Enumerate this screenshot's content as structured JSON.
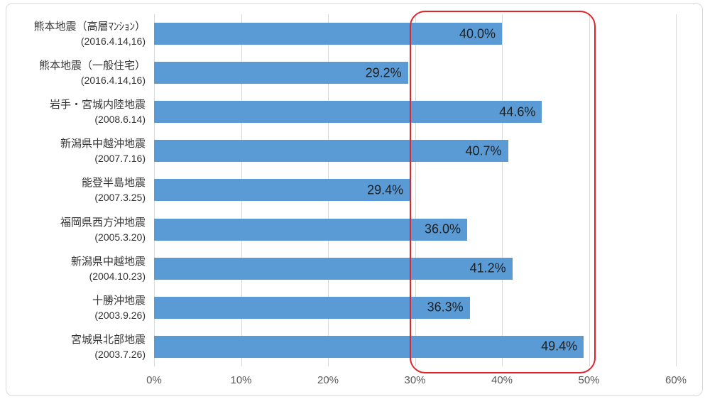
{
  "colors": {
    "bar": "#5b9bd5",
    "gridline": "#d9d9d9",
    "frame_border": "#d9d9d9",
    "tick_label": "#595959",
    "category_label": "#333333",
    "data_label": "#1f1f1f",
    "highlight_box": "#e0242b",
    "background": "#ffffff"
  },
  "chart_data": {
    "type": "bar",
    "orientation": "horizontal",
    "title": "",
    "xlabel": "",
    "ylabel": "",
    "xlim": [
      0,
      60
    ],
    "grid": true,
    "legend": false,
    "categories": [
      {
        "name": "熊本地震（高層ﾏﾝｼｮﾝ）",
        "date": "(2016.4.14,16)"
      },
      {
        "name": "熊本地震（一般住宅）",
        "date": "(2016.4.14,16)"
      },
      {
        "name": "岩手・宮城内陸地震",
        "date": "(2008.6.14)"
      },
      {
        "name": "新潟県中越沖地震",
        "date": "(2007.7.16)"
      },
      {
        "name": "能登半島地震",
        "date": "(2007.3.25)"
      },
      {
        "name": "福岡県西方沖地震",
        "date": "(2005.3.20)"
      },
      {
        "name": "新潟県中越地震",
        "date": "(2004.10.23)"
      },
      {
        "name": "十勝沖地震",
        "date": "(2003.9.26)"
      },
      {
        "name": "宮城県北部地震",
        "date": "(2003.7.26)"
      }
    ],
    "values": [
      40.0,
      29.2,
      44.6,
      40.7,
      29.4,
      36.0,
      41.2,
      36.3,
      49.4
    ],
    "data_labels": [
      "40.0%",
      "29.2%",
      "44.6%",
      "40.7%",
      "29.4%",
      "36.0%",
      "41.2%",
      "36.3%",
      "49.4%"
    ],
    "x_ticks": [
      "0%",
      "10%",
      "20%",
      "30%",
      "40%",
      "50%",
      "60%"
    ],
    "x_tick_values": [
      0,
      10,
      20,
      30,
      40,
      50,
      60
    ],
    "annotations": [
      {
        "type": "rounded-rect-highlight",
        "description": "red rounded rectangle highlighting the ~29%-50% value range across all bars",
        "x_range_percent": [
          29.4,
          50.5
        ],
        "color": "#e0242b"
      }
    ]
  }
}
